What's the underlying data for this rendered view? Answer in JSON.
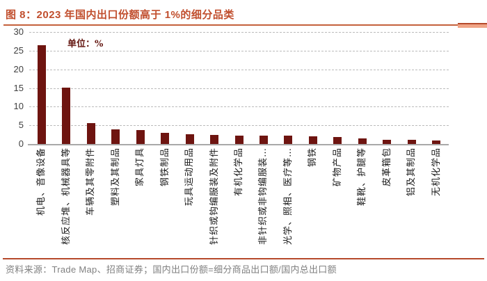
{
  "title": "图 8：2023 年国内出口份额高于 1%的细分品类",
  "unit_label": "单位：%",
  "source_note": "资料来源：Trade Map、招商证券；国内出口份额=细分商品出口额/国内总出口额",
  "colors": {
    "title_text": "#C14F2E",
    "title_rule": "#C4613B",
    "title_rule_accent_fill": "#EFA486",
    "title_rule_accent_edge": "#B5492A",
    "bar": "#6E1410",
    "gridline": "#BBBBBB",
    "axis_line": "#A9A9A9",
    "ytick_text": "#404040",
    "category_text": "#1A1A1A",
    "unit_text": "#641711",
    "source_text": "#808080",
    "source_rule": "#B5492A"
  },
  "chart_data": {
    "type": "bar",
    "title": "2023 年国内出口份额高于 1%的细分品类",
    "unit": "%",
    "categories": [
      "机电、音像设备",
      "核反应堆、机械器具等",
      "车辆及其零附件",
      "塑料及其制品",
      "家具灯具",
      "钢铁制品",
      "玩具运动用品",
      "针织或钩编服装及附件",
      "有机化学品",
      "非针织或非钩编服装…",
      "光学、照相、医疗等…",
      "钢铁",
      "矿物产品",
      "鞋靴、护腿等",
      "皮革箱包",
      "铝及其制品",
      "无机化学品"
    ],
    "values": [
      26.4,
      15.1,
      5.5,
      4.0,
      3.7,
      3.0,
      2.7,
      2.5,
      2.3,
      2.2,
      2.2,
      2.0,
      1.9,
      1.5,
      1.2,
      1.1,
      1.0
    ],
    "xlabel": "",
    "ylabel": "",
    "ylim": [
      0,
      30
    ],
    "yticks": [
      30,
      25,
      20,
      15,
      10,
      5,
      0
    ],
    "grid": "horizontal-dashed",
    "legend": "none",
    "bar_color": "#6E1410",
    "category_label_rotation_deg": -90
  }
}
